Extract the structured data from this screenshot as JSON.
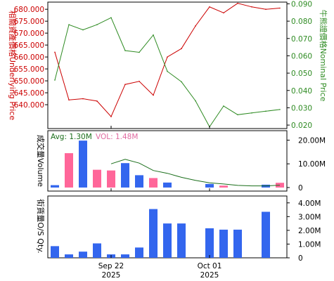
{
  "chart_data": [
    {
      "type": "line",
      "panel": "price",
      "left_axis_label": "相關資產價格Underlying Price",
      "right_axis_label": "牛熊證價格Nominal Price",
      "x": [
        "2025-09-16",
        "2025-09-17",
        "2025-09-18",
        "2025-09-19",
        "2025-09-22",
        "2025-09-23",
        "2025-09-24",
        "2025-09-25",
        "2025-09-26",
        "2025-09-29",
        "2025-09-30",
        "2025-10-02",
        "2025-10-03",
        "2025-10-06",
        "2025-10-08",
        "2025-10-09",
        "2025-10-10"
      ],
      "series": [
        {
          "name": "Underlying",
          "axis": "left",
          "color": "#cc0000",
          "values": [
            662,
            642,
            642.5,
            641.5,
            635,
            648.5,
            649.8,
            644,
            660,
            663.5,
            673,
            681,
            678.5,
            682.5,
            681,
            680,
            680.5
          ]
        },
        {
          "name": "Nominal",
          "axis": "right",
          "color": "#2e8b22",
          "values": [
            0.046,
            0.078,
            0.075,
            0.078,
            0.082,
            0.063,
            0.062,
            0.072,
            0.051,
            0.045,
            0.034,
            0.019,
            0.031,
            0.026,
            0.027,
            0.028,
            0.029
          ]
        }
      ],
      "left_ylim": [
        630,
        683
      ],
      "right_ylim": [
        0.018,
        0.091
      ],
      "left_ticks": [
        "640.000",
        "645.000",
        "650.000",
        "655.000",
        "660.000",
        "665.000",
        "670.000",
        "675.000",
        "680.000"
      ],
      "right_ticks": [
        "0.020",
        "0.030",
        "0.040",
        "0.050",
        "0.060",
        "0.070",
        "0.080",
        "0.090"
      ],
      "grid": false
    },
    {
      "type": "bar",
      "panel": "volume",
      "label": "成交量Volume",
      "legend": {
        "avg_text": "Avg: 1.30M",
        "vol_text": "VOL: 1.48M",
        "avg_color": "#1a6e1a",
        "vol_color": "#e06aa0"
      },
      "x": [
        "2025-09-16",
        "2025-09-17",
        "2025-09-18",
        "2025-09-19",
        "2025-09-22",
        "2025-09-23",
        "2025-09-24",
        "2025-09-25",
        "2025-09-26",
        "2025-09-29",
        "2025-09-30",
        "2025-10-02",
        "2025-10-03",
        "2025-10-06",
        "2025-10-08",
        "2025-10-09",
        "2025-10-10"
      ],
      "values_millions": [
        1.0,
        14.5,
        19.8,
        7.5,
        7.2,
        10.3,
        5.2,
        4.0,
        2.1,
        0,
        0,
        1.5,
        0.8,
        0,
        0,
        1.2,
        2.0
      ],
      "colors": [
        "#3366ee",
        "#ff6699",
        "#3366ee",
        "#ff6699",
        "#ff6699",
        "#3366ee",
        "#3366ee",
        "#ff6699",
        "#3366ee",
        "#3366ee",
        "#3366ee",
        "#3366ee",
        "#ff6699",
        "#3366ee",
        "#3366ee",
        "#3366ee",
        "#ff6699"
      ],
      "avg_line_millions": [
        null,
        null,
        null,
        null,
        10.0,
        11.9,
        10.3,
        7.2,
        6.0,
        4.3,
        3.0,
        2.0,
        1.5,
        0.9,
        0.7,
        0.7,
        1.0
      ],
      "ylim": [
        -1.5,
        24
      ],
      "ticks": [
        "0",
        "10.00M",
        "20.00M"
      ]
    },
    {
      "type": "bar",
      "panel": "os_qty",
      "label": "街貨量O/S Qty.",
      "x": [
        "2025-09-16",
        "2025-09-17",
        "2025-09-18",
        "2025-09-19",
        "2025-09-22",
        "2025-09-23",
        "2025-09-24",
        "2025-09-25",
        "2025-09-26",
        "2025-09-29",
        "2025-09-30",
        "2025-10-02",
        "2025-10-03",
        "2025-10-06",
        "2025-10-08",
        "2025-10-09",
        "2025-10-10"
      ],
      "values_millions": [
        0.85,
        0.25,
        0.45,
        1.05,
        0.25,
        0.25,
        0.75,
        3.55,
        2.5,
        2.5,
        0,
        2.15,
        2.05,
        2.05,
        0,
        3.35,
        0
      ],
      "color": "#3366ee",
      "ylim": [
        0,
        4.5
      ],
      "ticks": [
        "0",
        "1.00M",
        "2.00M",
        "3.00M",
        "4.00M"
      ],
      "xtick_labels": [
        {
          "at": "2025-09-22",
          "line1": "Sep 22",
          "line2": "2025"
        },
        {
          "at": "2025-10-02",
          "line1": "Oct 01",
          "line2": "2025"
        }
      ]
    }
  ]
}
